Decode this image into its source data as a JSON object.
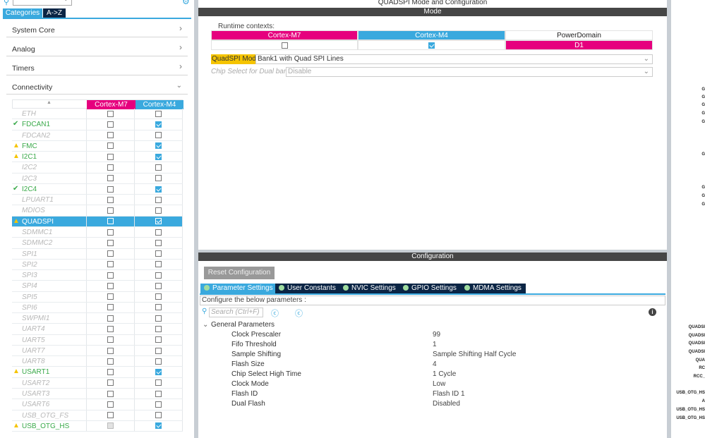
{
  "left": {
    "search": {
      "value": ""
    },
    "tabs": [
      {
        "label": "Categories",
        "active": true
      },
      {
        "label": "A->Z",
        "active": false
      }
    ],
    "categories": [
      {
        "label": "System Core",
        "expanded": false
      },
      {
        "label": "Analog",
        "expanded": false
      },
      {
        "label": "Timers",
        "expanded": false
      },
      {
        "label": "Connectivity",
        "expanded": true
      }
    ],
    "columns": [
      "Cortex-M7",
      "Cortex-M4"
    ],
    "peripherals": [
      {
        "name": "ETH",
        "status": "",
        "m7": false,
        "m4": false
      },
      {
        "name": "FDCAN1",
        "status": "ok",
        "m7": false,
        "m4": true
      },
      {
        "name": "FDCAN2",
        "status": "",
        "m7": false,
        "m4": false
      },
      {
        "name": "FMC",
        "status": "warning",
        "m7": false,
        "m4": true
      },
      {
        "name": "I2C1",
        "status": "warning",
        "m7": false,
        "m4": true
      },
      {
        "name": "I2C2",
        "status": "",
        "m7": false,
        "m4": false
      },
      {
        "name": "I2C3",
        "status": "",
        "m7": false,
        "m4": false
      },
      {
        "name": "I2C4",
        "status": "ok",
        "m7": false,
        "m4": true
      },
      {
        "name": "LPUART1",
        "status": "",
        "m7": false,
        "m4": false
      },
      {
        "name": "MDIOS",
        "status": "",
        "m7": false,
        "m4": false
      },
      {
        "name": "QUADSPI",
        "status": "warning",
        "m7": false,
        "m4": true,
        "selected": true
      },
      {
        "name": "SDMMC1",
        "status": "",
        "m7": false,
        "m4": false
      },
      {
        "name": "SDMMC2",
        "status": "",
        "m7": false,
        "m4": false
      },
      {
        "name": "SPI1",
        "status": "",
        "m7": false,
        "m4": false
      },
      {
        "name": "SPI2",
        "status": "",
        "m7": false,
        "m4": false
      },
      {
        "name": "SPI3",
        "status": "",
        "m7": false,
        "m4": false
      },
      {
        "name": "SPI4",
        "status": "",
        "m7": false,
        "m4": false
      },
      {
        "name": "SPI5",
        "status": "",
        "m7": false,
        "m4": false
      },
      {
        "name": "SPI6",
        "status": "",
        "m7": false,
        "m4": false
      },
      {
        "name": "SWPMI1",
        "status": "",
        "m7": false,
        "m4": false
      },
      {
        "name": "UART4",
        "status": "",
        "m7": false,
        "m4": false
      },
      {
        "name": "UART5",
        "status": "",
        "m7": false,
        "m4": false
      },
      {
        "name": "UART7",
        "status": "",
        "m7": false,
        "m4": false
      },
      {
        "name": "UART8",
        "status": "",
        "m7": false,
        "m4": false
      },
      {
        "name": "USART1",
        "status": "warning",
        "m7": false,
        "m4": true
      },
      {
        "name": "USART2",
        "status": "",
        "m7": false,
        "m4": false
      },
      {
        "name": "USART3",
        "status": "",
        "m7": false,
        "m4": false
      },
      {
        "name": "USART6",
        "status": "",
        "m7": false,
        "m4": false
      },
      {
        "name": "USB_OTG_FS",
        "status": "",
        "m7": false,
        "m4": false
      },
      {
        "name": "USB_OTG_HS",
        "status": "warning",
        "m7": false,
        "m4": true,
        "m7_disabled": true
      }
    ]
  },
  "center": {
    "title": "QUADSPI Mode and Configuration",
    "mode_header": "Mode",
    "runtime_label": "Runtime contexts:",
    "runtime": {
      "m7": "Cortex-M7",
      "m4": "Cortex-M4",
      "pd": "PowerDomain",
      "m7_checked": false,
      "m4_checked": true,
      "pd_value": "D1"
    },
    "quadspi_mode_label": "QuadSPI Mode",
    "quadspi_mode_value": "Bank1 with Quad SPI Lines",
    "chip_select_label": "Chip Select for Dual bank",
    "chip_select_value": "Disable",
    "config_header": "Configuration",
    "reset_button": "Reset Configuration",
    "tabs": [
      "Parameter Settings",
      "User Constants",
      "NVIC Settings",
      "GPIO Settings",
      "MDMA Settings"
    ],
    "configure_text": "Configure the below parameters :",
    "search_placeholder": "Search (Ctrl+F)",
    "group": "General Parameters",
    "params": [
      {
        "name": "Clock Prescaler",
        "value": "99"
      },
      {
        "name": "Fifo Threshold",
        "value": "1"
      },
      {
        "name": "Sample Shifting",
        "value": "Sample Shifting Half Cycle"
      },
      {
        "name": "Flash Size",
        "value": "4"
      },
      {
        "name": "Chip Select High Time",
        "value": "1 Cycle"
      },
      {
        "name": "Clock Mode",
        "value": "Low"
      },
      {
        "name": "Flash ID",
        "value": "Flash ID 1"
      },
      {
        "name": "Dual Flash",
        "value": "Disabled"
      }
    ]
  },
  "right": {
    "pin_labels": [
      "G",
      "G",
      "G",
      "G",
      "G",
      "G",
      "G",
      "G",
      "G",
      "QUADSI",
      "QUADSI",
      "QUADSI",
      "QUADSI",
      "QUA",
      "RC",
      "RCC_",
      "USB_OTG_HS",
      "A",
      "USB_OTG_HS",
      "USB_OTG_HS"
    ]
  },
  "colors": {
    "m7": "#e6007e",
    "m4": "#3aa9de",
    "dark": "#0b2545",
    "warning": "#f5c400",
    "ok": "#3aaa4a",
    "mode_highlight": "#f5c400"
  }
}
